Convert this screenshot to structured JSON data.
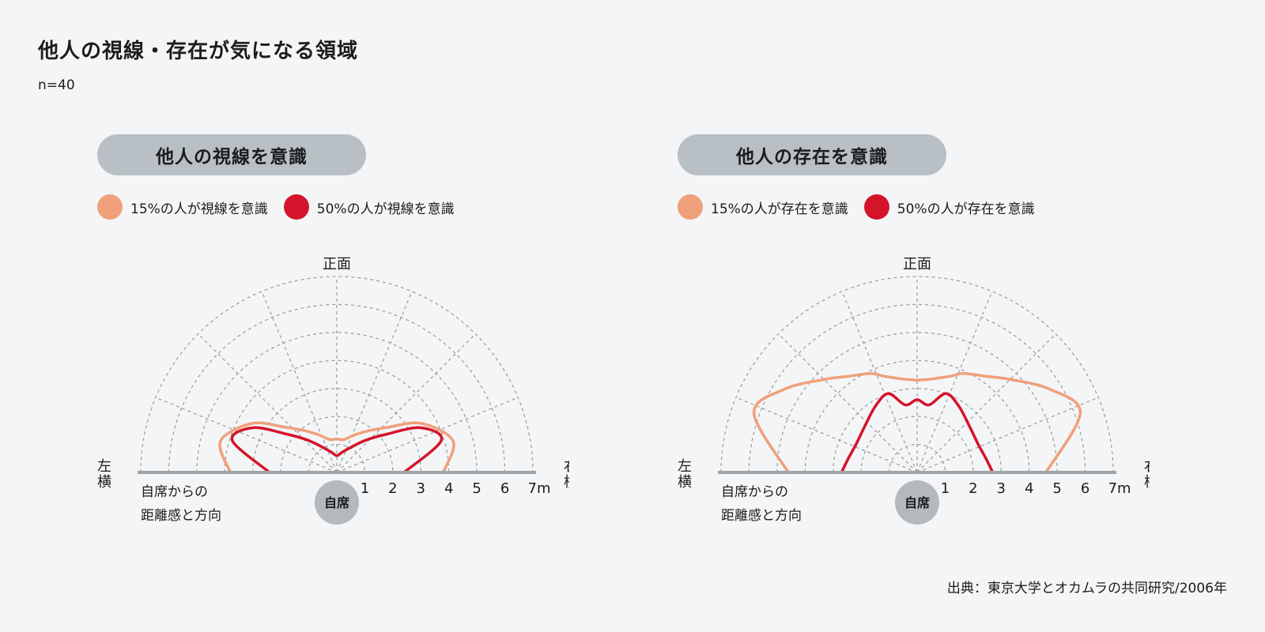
{
  "title": "他人の視線・存在が気になる領域",
  "sample": "n=40",
  "source": "出典：東京大学とオカムラの共同研究/2006年",
  "colors": {
    "light": "#f0a07a",
    "dark": "#d4142a",
    "pill": "#b8c0c6",
    "grid": "#9a9a9a",
    "baseline": "#9ea4a8",
    "seat": "#b3b9bd"
  },
  "chart_data": [
    {
      "type": "polar-area",
      "title": "他人の視線を意識",
      "angular_labels": {
        "front": "正面",
        "left": "左横",
        "right": "右横"
      },
      "radial_ticks": [
        "1",
        "2",
        "3",
        "4",
        "5",
        "6",
        "7m"
      ],
      "radial_range": [
        0,
        7
      ],
      "center_label": "自席",
      "axis_label": [
        "自席からの",
        "距離感と方向"
      ],
      "grid": true,
      "series": [
        {
          "name": "15%の人が視線を意識",
          "color": "#f0a07a",
          "points": [
            [
              0,
              3.8
            ],
            [
              15,
              4.3
            ],
            [
              30,
              3.5
            ],
            [
              42,
              2.4
            ],
            [
              52,
              1.9
            ],
            [
              64,
              1.5
            ],
            [
              78,
              1.2
            ],
            [
              90,
              1.2
            ],
            [
              102,
              1.2
            ],
            [
              116,
              1.5
            ],
            [
              128,
              1.9
            ],
            [
              138,
              2.4
            ],
            [
              150,
              3.5
            ],
            [
              165,
              4.3
            ],
            [
              180,
              3.8
            ]
          ]
        },
        {
          "name": "50%の人が視線を意識",
          "color": "#d4142a",
          "points": [
            [
              0,
              2.4
            ],
            [
              17,
              3.9
            ],
            [
              28,
              3.4
            ],
            [
              38,
              2.2
            ],
            [
              48,
              1.55
            ],
            [
              60,
              1.05
            ],
            [
              75,
              0.75
            ],
            [
              90,
              0.6
            ],
            [
              105,
              0.75
            ],
            [
              120,
              1.05
            ],
            [
              132,
              1.55
            ],
            [
              142,
              2.2
            ],
            [
              152,
              3.4
            ],
            [
              163,
              3.9
            ],
            [
              180,
              2.4
            ]
          ]
        }
      ]
    },
    {
      "type": "polar-area",
      "title": "他人の存在を意識",
      "angular_labels": {
        "front": "正面",
        "left": "左横",
        "right": "右横"
      },
      "radial_ticks": [
        "1",
        "2",
        "3",
        "4",
        "5",
        "6",
        "7m"
      ],
      "radial_range": [
        0,
        7
      ],
      "center_label": "自席",
      "axis_label": [
        "自席からの",
        "距離感と方向"
      ],
      "grid": true,
      "series": [
        {
          "name": "15%の人が存在を意識",
          "color": "#f0a07a",
          "points": [
            [
              0,
              4.6
            ],
            [
              20,
              6.2
            ],
            [
              32,
              5.6
            ],
            [
              45,
              4.7
            ],
            [
              55,
              4.2
            ],
            [
              65,
              3.9
            ],
            [
              72,
              3.6
            ],
            [
              90,
              3.3
            ],
            [
              108,
              3.6
            ],
            [
              115,
              3.9
            ],
            [
              125,
              4.2
            ],
            [
              135,
              4.7
            ],
            [
              148,
              5.6
            ],
            [
              160,
              6.2
            ],
            [
              180,
              4.6
            ]
          ]
        },
        {
          "name": "50%の人が存在を意識",
          "color": "#d4142a",
          "points": [
            [
              0,
              2.7
            ],
            [
              12,
              2.5
            ],
            [
              25,
              2.4
            ],
            [
              42,
              2.5
            ],
            [
              58,
              2.8
            ],
            [
              70,
              3.0
            ],
            [
              80,
              2.45
            ],
            [
              90,
              2.6
            ],
            [
              100,
              2.45
            ],
            [
              110,
              3.0
            ],
            [
              122,
              2.8
            ],
            [
              138,
              2.5
            ],
            [
              155,
              2.4
            ],
            [
              168,
              2.5
            ],
            [
              180,
              2.7
            ]
          ]
        }
      ]
    }
  ]
}
